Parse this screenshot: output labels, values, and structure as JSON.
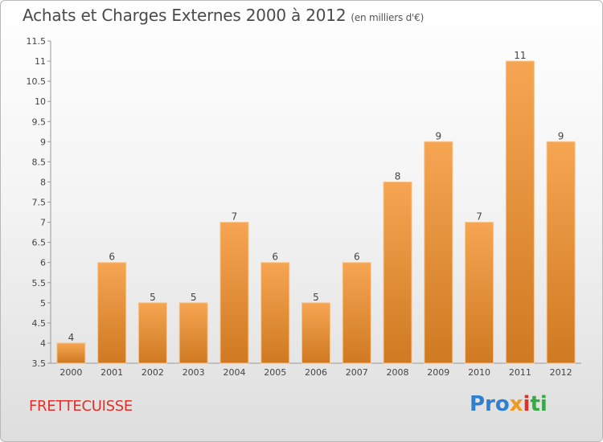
{
  "header": {
    "title": "Achats et Charges Externes 2000 à 2012",
    "unit": "(en milliers d'€)"
  },
  "footer": {
    "commune": "FRETTECUISSE",
    "logo": [
      "Pro",
      "x",
      "i",
      "ti"
    ]
  },
  "colors": {
    "bar_top": "#f6a552",
    "bar_bottom": "#cf7a22",
    "commune": "#e0302a"
  },
  "chart_data": {
    "type": "bar",
    "title": "Achats et Charges Externes 2000 à 2012",
    "subtitle": "(en milliers d'€)",
    "categories": [
      "2000",
      "2001",
      "2002",
      "2003",
      "2004",
      "2005",
      "2006",
      "2007",
      "2008",
      "2009",
      "2010",
      "2011",
      "2012"
    ],
    "values": [
      4,
      6,
      5,
      5,
      7,
      6,
      5,
      6,
      8,
      9,
      7,
      11,
      9
    ],
    "ylim": [
      3.5,
      11.5
    ],
    "yticks": [
      "3.5",
      "4",
      "4.5",
      "5",
      "5.5",
      "6",
      "6.5",
      "7",
      "7.5",
      "8",
      "8.5",
      "9",
      "9.5",
      "10",
      "10.5",
      "11",
      "11.5"
    ],
    "grid": false,
    "legend": "none"
  }
}
